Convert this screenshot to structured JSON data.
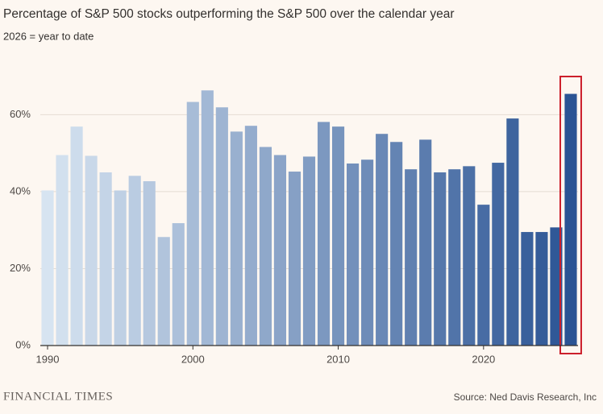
{
  "chart_data": {
    "type": "bar",
    "title": "Percentage of S&P 500 stocks outperforming the S&P 500 over the calendar year",
    "subtitle": "2026 = year to date",
    "x": [
      1990,
      1991,
      1992,
      1993,
      1994,
      1995,
      1996,
      1997,
      1998,
      1999,
      2000,
      2001,
      2002,
      2003,
      2004,
      2005,
      2006,
      2007,
      2008,
      2009,
      2010,
      2011,
      2012,
      2013,
      2014,
      2015,
      2016,
      2017,
      2018,
      2019,
      2020,
      2021,
      2022,
      2023,
      2024,
      2025,
      2026
    ],
    "values": [
      40.3,
      49.5,
      56.9,
      49.3,
      45,
      40.3,
      44.1,
      42.7,
      28.2,
      31.8,
      63.3,
      66.3,
      61.9,
      55.6,
      57.1,
      51.6,
      49.5,
      45.2,
      49.1,
      58.1,
      56.9,
      47.3,
      48.3,
      55,
      52.9,
      45.8,
      53.5,
      45,
      45.8,
      46.6,
      36.6,
      47.5,
      59,
      29.5,
      29.5,
      30.7,
      65.4
    ],
    "xlim": [
      1989.5,
      2026.5
    ],
    "xticks": [
      1990,
      2000,
      2010,
      2020
    ],
    "ylim": [
      0,
      72
    ],
    "yticks": [
      {
        "value": 0,
        "label": "0%"
      },
      {
        "value": 20,
        "label": "20%"
      },
      {
        "value": 40,
        "label": "40%"
      },
      {
        "value": 60,
        "label": "60%"
      }
    ],
    "grid": true,
    "color_range": [
      "#d7e4f1",
      "#2b5494"
    ],
    "highlight_x": 2026,
    "highlight_color": "#cc1f2b",
    "brand": "FINANCIAL TIMES",
    "source": "Source: Ned Davis Research, Inc"
  }
}
